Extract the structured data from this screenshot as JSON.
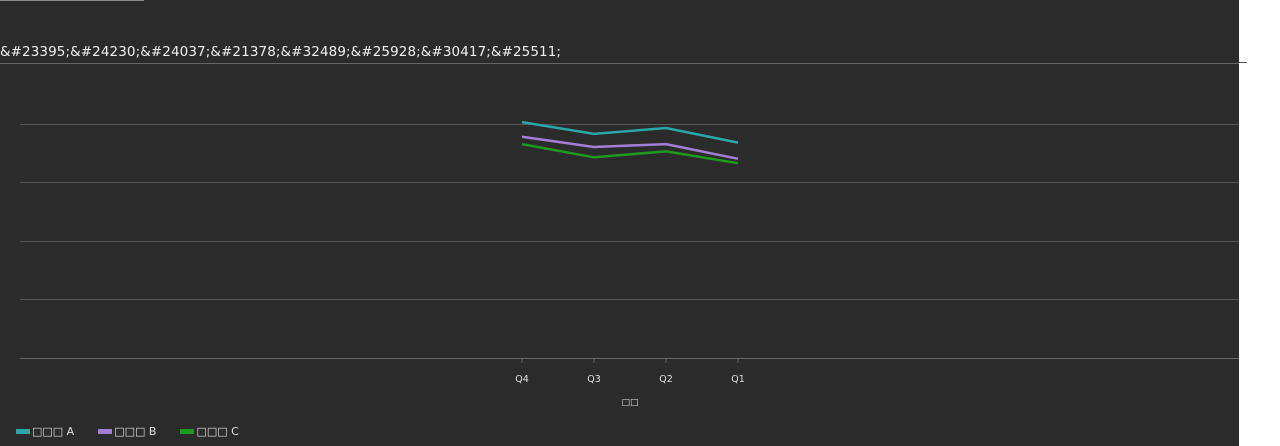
{
  "chart_data": {
    "type": "line",
    "title": "&#23395;&#24230;&#24037;&#21378;&#32489;&#25928;&#30417;&#25511;",
    "xlabel": "□□",
    "ylabel": "",
    "categories": [
      "Q4",
      "Q3",
      "Q2",
      "Q1"
    ],
    "ylim": [
      0,
      100
    ],
    "grid": true,
    "legend_placement": "bottom-left",
    "series": [
      {
        "name": "□□□ A",
        "color": "#2aa7a6",
        "values": [
          80.5,
          76.5,
          78.5,
          73.5
        ]
      },
      {
        "name": "□□□ B",
        "color": "#a27fd4",
        "values": [
          75.5,
          72.0,
          73.0,
          68.0
        ]
      },
      {
        "name": "□□□ C",
        "color": "#1e9a1e",
        "values": [
          73.0,
          68.5,
          70.5,
          66.5
        ]
      }
    ]
  }
}
